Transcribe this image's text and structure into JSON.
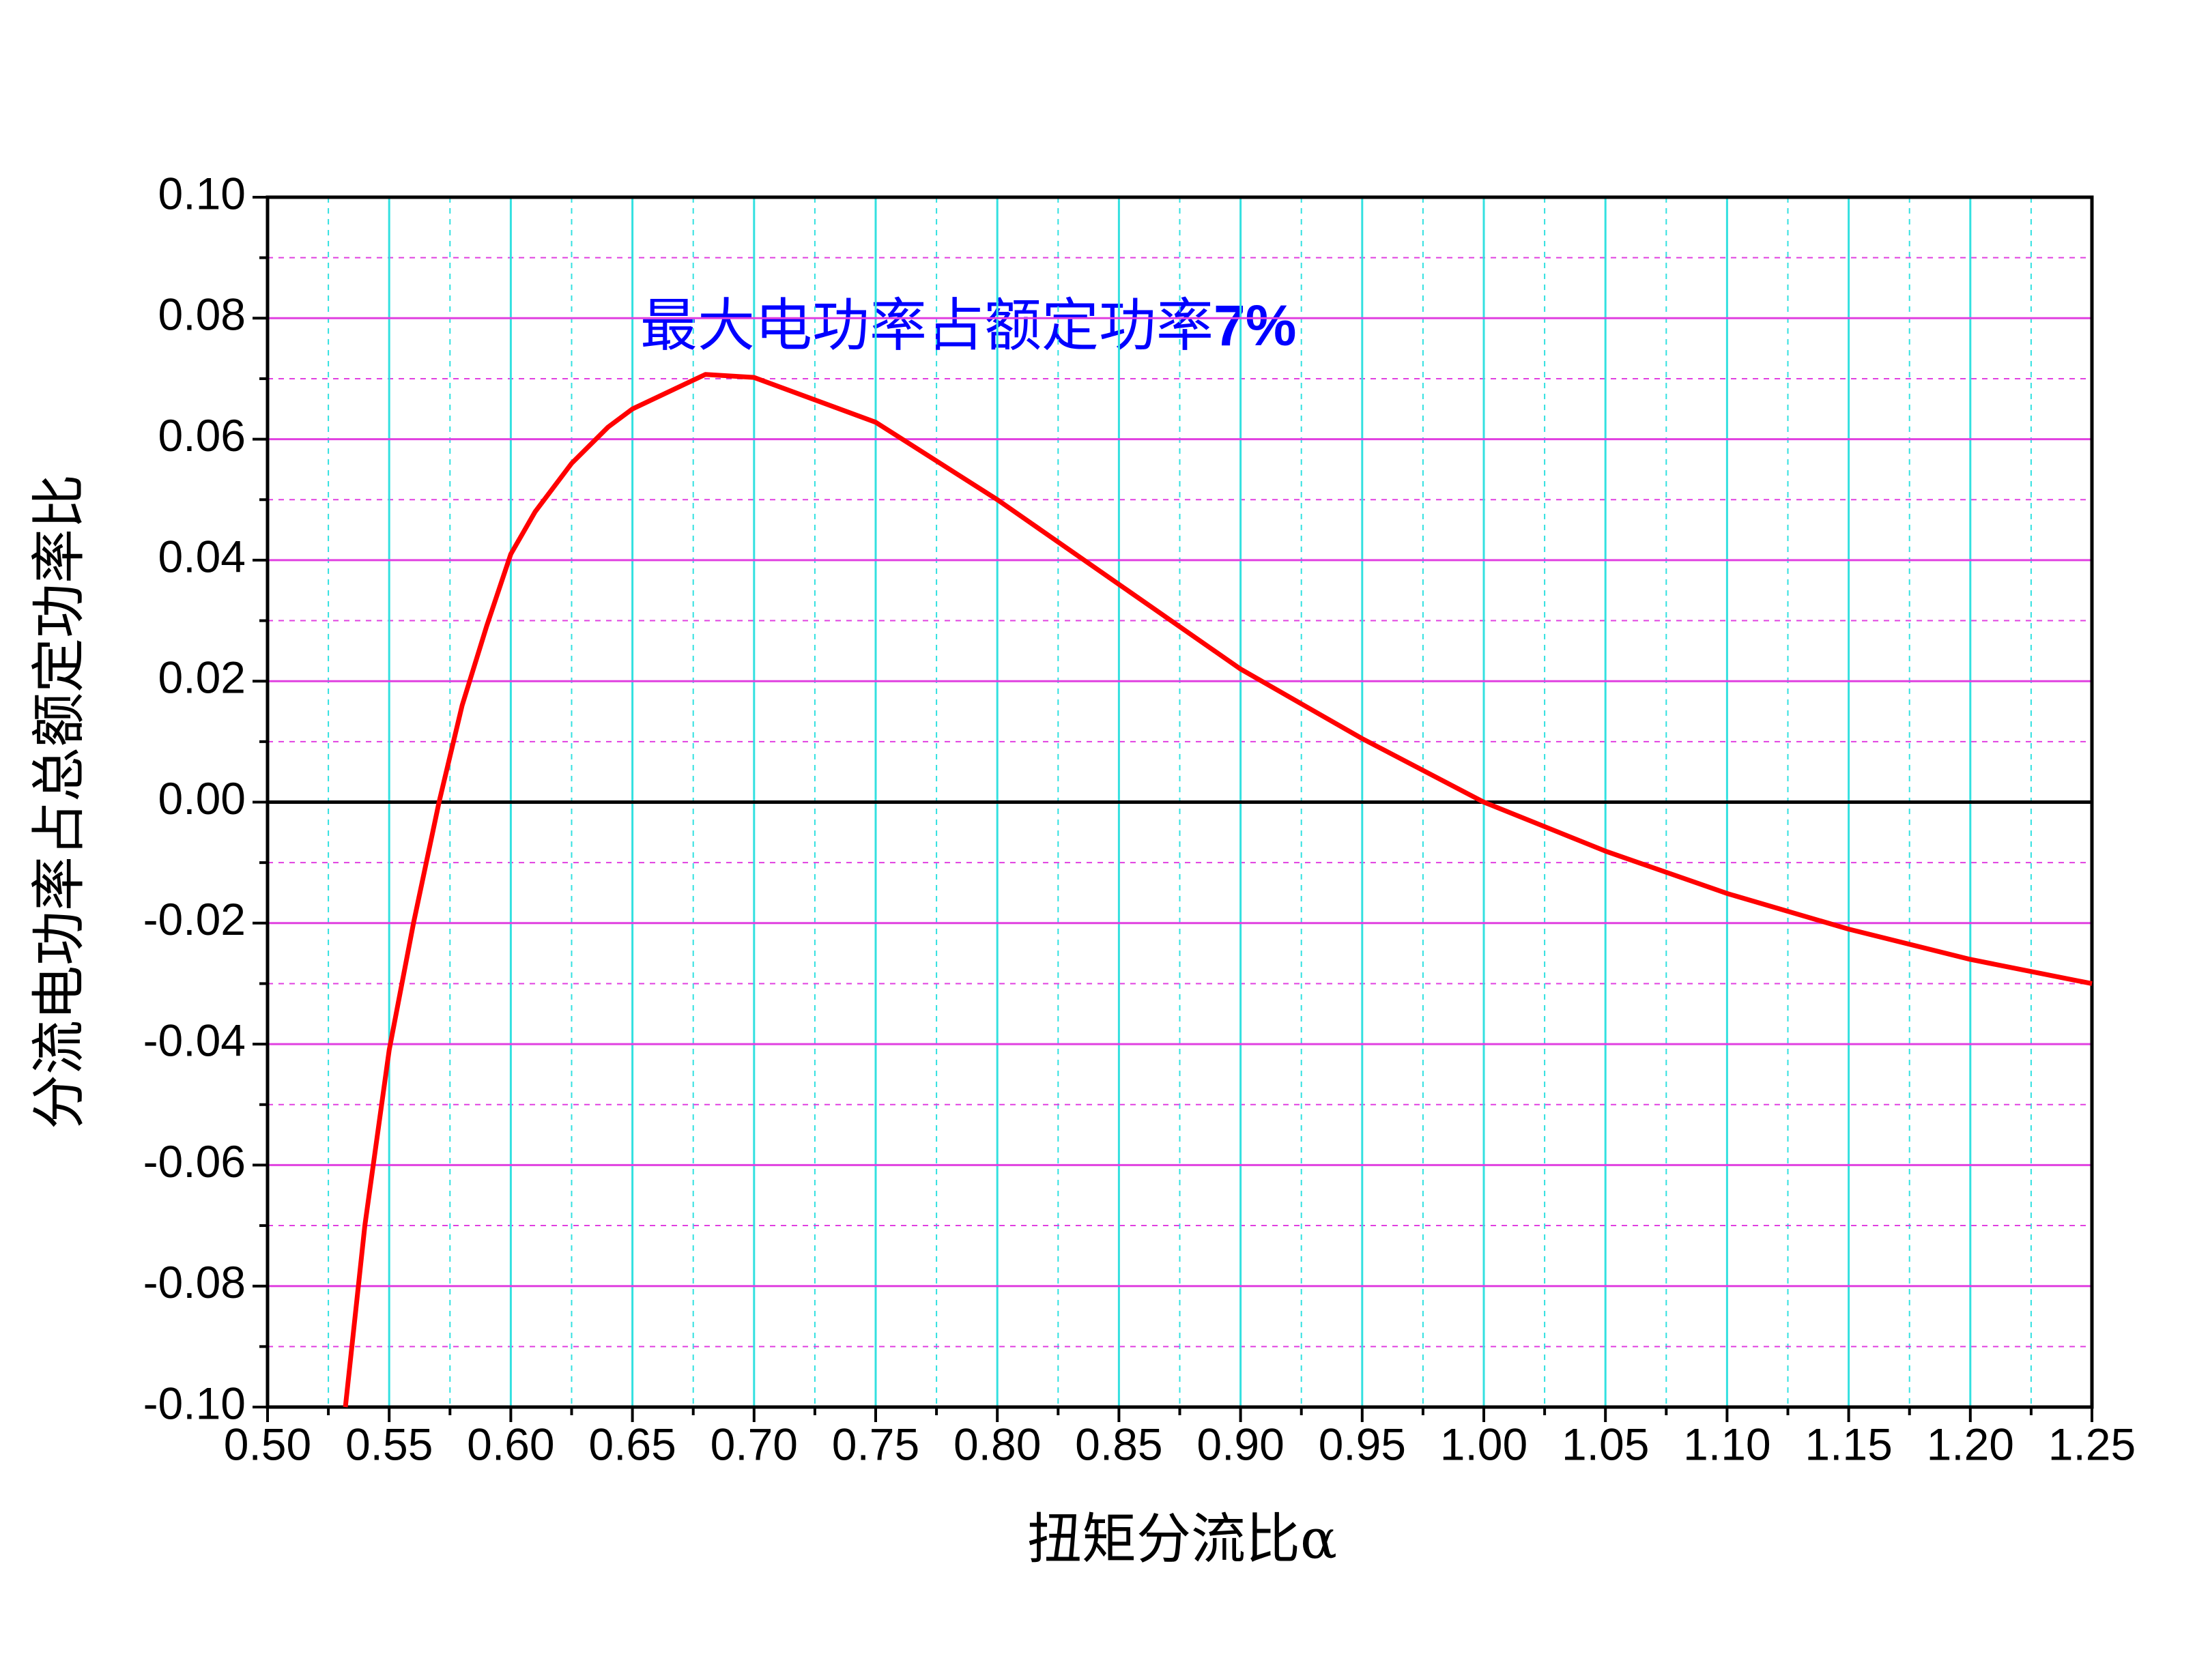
{
  "chart_data": {
    "type": "line",
    "x_label": "扭矩分流比α",
    "y_label": "分流电功率占总额定功率比",
    "annotation": {
      "text": "最大电功率占额定功率",
      "highlight": "7%"
    },
    "x": [
      0.532,
      0.54,
      0.55,
      0.56,
      0.5705,
      0.58,
      0.59,
      0.6,
      0.61,
      0.625,
      0.64,
      0.65,
      0.68,
      0.7,
      0.75,
      0.8,
      0.85,
      0.9,
      0.95,
      1.0,
      1.05,
      1.1,
      1.15,
      1.2,
      1.25
    ],
    "series": [
      {
        "name": "curve",
        "color": "#ff0000",
        "values": [
          -0.1,
          -0.07,
          -0.041,
          -0.02,
          0.0,
          0.016,
          0.029,
          0.041,
          0.048,
          0.056,
          0.062,
          0.065,
          0.0707,
          0.0702,
          0.0628,
          0.05,
          0.036,
          0.022,
          0.0105,
          0.0,
          -0.0081,
          -0.0151,
          -0.021,
          -0.026,
          -0.03
        ]
      }
    ],
    "xlim": [
      0.5,
      1.25
    ],
    "xticks": [
      {
        "value": 0.5,
        "label": "0.50"
      },
      {
        "value": 0.55,
        "label": "0.55"
      },
      {
        "value": 0.6,
        "label": "0.60"
      },
      {
        "value": 0.65,
        "label": "0.65"
      },
      {
        "value": 0.7,
        "label": "0.70"
      },
      {
        "value": 0.75,
        "label": "0.75"
      },
      {
        "value": 0.8,
        "label": "0.80"
      },
      {
        "value": 0.85,
        "label": "0.85"
      },
      {
        "value": 0.9,
        "label": "0.90"
      },
      {
        "value": 0.95,
        "label": "0.95"
      },
      {
        "value": 1.0,
        "label": "1.00"
      },
      {
        "value": 1.05,
        "label": "1.05"
      },
      {
        "value": 1.1,
        "label": "1.10"
      },
      {
        "value": 1.15,
        "label": "1.15"
      },
      {
        "value": 1.2,
        "label": "1.20"
      },
      {
        "value": 1.25,
        "label": "1.25"
      }
    ],
    "ylim": [
      -0.1,
      0.1
    ],
    "yticks": [
      {
        "value": -0.1,
        "label": "-0.10"
      },
      {
        "value": -0.08,
        "label": "-0.08"
      },
      {
        "value": -0.06,
        "label": "-0.06"
      },
      {
        "value": -0.04,
        "label": "-0.04"
      },
      {
        "value": -0.02,
        "label": "-0.02"
      },
      {
        "value": 0,
        "label": "0.00"
      },
      {
        "value": 0.02,
        "label": "0.02"
      },
      {
        "value": 0.04,
        "label": "0.04"
      },
      {
        "value": 0.06,
        "label": "0.06"
      },
      {
        "value": 0.08,
        "label": "0.08"
      },
      {
        "value": 0.1,
        "label": "0.10"
      }
    ],
    "grid": true,
    "minor_grid": true,
    "xgrid_color": "#33e0e0",
    "ygrid_color": "#e040e0",
    "zero_line": true
  }
}
